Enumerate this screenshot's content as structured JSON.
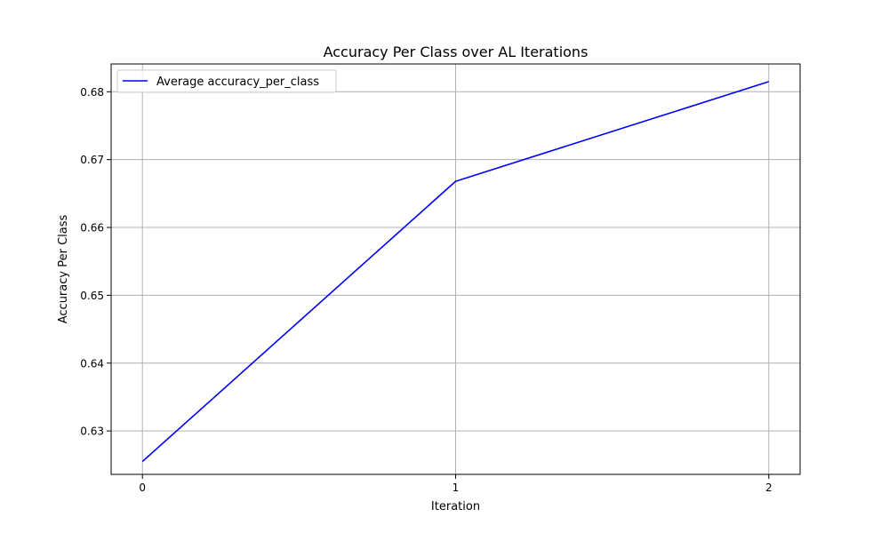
{
  "chart_data": {
    "type": "line",
    "title": "Accuracy Per Class over AL Iterations",
    "xlabel": "Iteration",
    "ylabel": "Accuracy Per Class",
    "x": [
      0,
      1,
      2
    ],
    "xticks": [
      "0",
      "1",
      "2"
    ],
    "yticks": [
      "0.63",
      "0.64",
      "0.65",
      "0.66",
      "0.67",
      "0.68"
    ],
    "xlim": [
      -0.1,
      2.1
    ],
    "ylim": [
      0.6236,
      0.6841
    ],
    "grid": true,
    "legend_position": "top-left",
    "series": [
      {
        "name": "Average accuracy_per_class",
        "color": "#0000ff",
        "values": [
          0.6255,
          0.6668,
          0.6815
        ]
      }
    ]
  }
}
